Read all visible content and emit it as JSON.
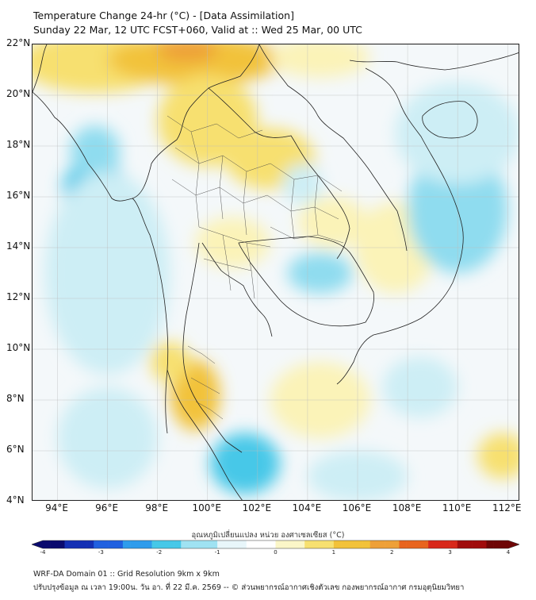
{
  "title_line1": "Temperature Change 24-hr (°C) - [Data Assimilation]",
  "title_line2": "Sunday 22 Mar, 12 UTC FCST+060, Valid at :: Wed 25 Mar, 00 UTC",
  "map": {
    "lat_range": [
      4,
      22
    ],
    "lon_range": [
      93,
      112.5
    ],
    "lat_labels": [
      "22°N",
      "20°N",
      "18°N",
      "16°N",
      "14°N",
      "12°N",
      "10°N",
      "8°N",
      "6°N",
      "4°N"
    ],
    "lon_labels": [
      "94°E",
      "96°E",
      "98°E",
      "100°E",
      "102°E",
      "104°E",
      "106°E",
      "108°E",
      "110°E",
      "112°E"
    ],
    "colors": {
      "background": "#f4f8fa",
      "warm_light": "#fbf3b8",
      "warm": "#f7e070",
      "warm_strong": "#f2c23a",
      "hot": "#eea038",
      "cool_light": "#cdeef5",
      "cool": "#8fdcef",
      "cool_strong": "#46c8e8",
      "border": "#222222"
    }
  },
  "colorbar": {
    "label": "อุณหภูมิเปลี่ยนแปลง หน่วย องศาเซลเซียส (°C)",
    "ticks": [
      "-4",
      "-3",
      "-2",
      "-1",
      "0",
      "1",
      "2",
      "3",
      "4"
    ],
    "range": [
      -4,
      4
    ]
  },
  "footer_line1": "WRF-DA Domain 01 :: Grid Resolution 9km x 9km",
  "footer_line2": "ปรับปรุงข้อมูล ณ เวลา 19:00น. วัน อา. ที่ 22 มี.ค. 2569 -- © ส่วนพยากรณ์อากาศเชิงตัวเลข กองพยากรณ์อากาศ กรมอุตุนิยมวิทยา"
}
